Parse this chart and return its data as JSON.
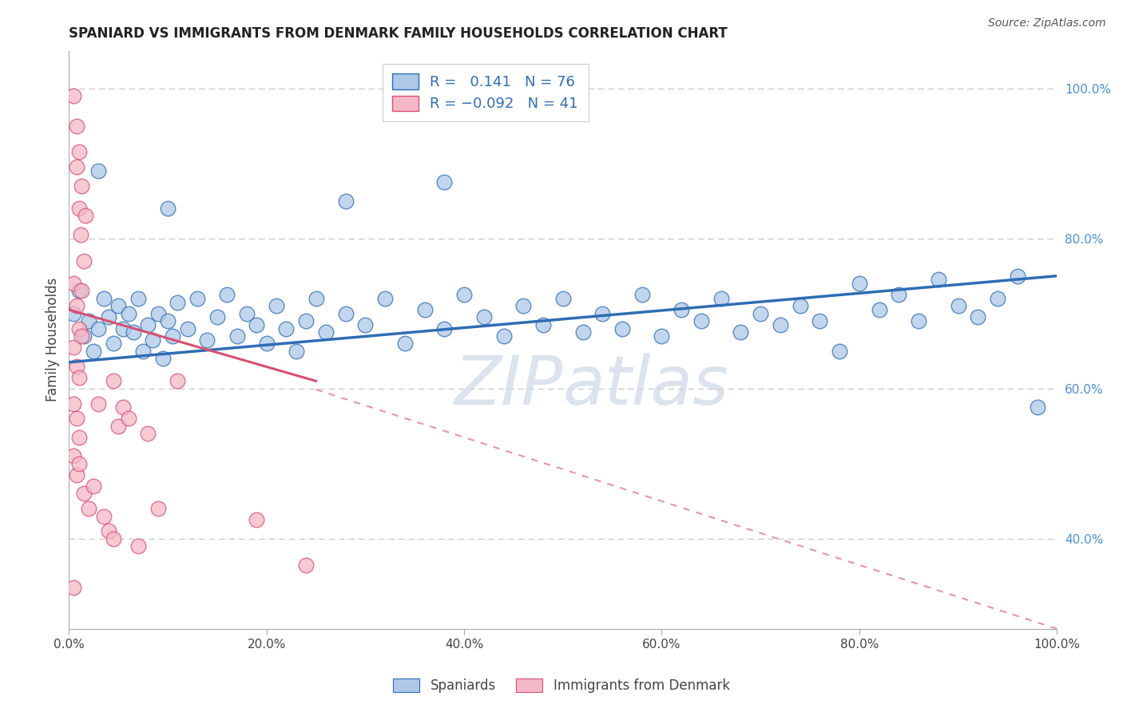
{
  "title": "SPANIARD VS IMMIGRANTS FROM DENMARK FAMILY HOUSEHOLDS CORRELATION CHART",
  "source": "Source: ZipAtlas.com",
  "ylabel": "Family Households",
  "r_blue": 0.141,
  "n_blue": 76,
  "r_pink": -0.092,
  "n_pink": 41,
  "blue_color": "#adc8e8",
  "pink_color": "#f5b8c8",
  "blue_line_color": "#2e6db4",
  "pink_line_color": "#d94f70",
  "dash_line_color": "#e0a0b0",
  "watermark_color": "#ccd8e8",
  "blue_dots": [
    [
      0.5,
      70.0
    ],
    [
      1.0,
      73.0
    ],
    [
      1.5,
      67.0
    ],
    [
      2.0,
      69.0
    ],
    [
      2.5,
      65.0
    ],
    [
      3.0,
      68.0
    ],
    [
      3.5,
      72.0
    ],
    [
      4.0,
      69.5
    ],
    [
      4.5,
      66.0
    ],
    [
      5.0,
      71.0
    ],
    [
      5.5,
      68.0
    ],
    [
      6.0,
      70.0
    ],
    [
      6.5,
      67.5
    ],
    [
      7.0,
      72.0
    ],
    [
      7.5,
      65.0
    ],
    [
      8.0,
      68.5
    ],
    [
      8.5,
      66.5
    ],
    [
      9.0,
      70.0
    ],
    [
      9.5,
      64.0
    ],
    [
      10.0,
      69.0
    ],
    [
      10.5,
      67.0
    ],
    [
      11.0,
      71.5
    ],
    [
      12.0,
      68.0
    ],
    [
      13.0,
      72.0
    ],
    [
      14.0,
      66.5
    ],
    [
      15.0,
      69.5
    ],
    [
      16.0,
      72.5
    ],
    [
      17.0,
      67.0
    ],
    [
      18.0,
      70.0
    ],
    [
      19.0,
      68.5
    ],
    [
      20.0,
      66.0
    ],
    [
      21.0,
      71.0
    ],
    [
      22.0,
      68.0
    ],
    [
      23.0,
      65.0
    ],
    [
      24.0,
      69.0
    ],
    [
      25.0,
      72.0
    ],
    [
      26.0,
      67.5
    ],
    [
      28.0,
      70.0
    ],
    [
      30.0,
      68.5
    ],
    [
      32.0,
      72.0
    ],
    [
      34.0,
      66.0
    ],
    [
      36.0,
      70.5
    ],
    [
      38.0,
      68.0
    ],
    [
      40.0,
      72.5
    ],
    [
      42.0,
      69.5
    ],
    [
      44.0,
      67.0
    ],
    [
      46.0,
      71.0
    ],
    [
      48.0,
      68.5
    ],
    [
      50.0,
      72.0
    ],
    [
      52.0,
      67.5
    ],
    [
      54.0,
      70.0
    ],
    [
      56.0,
      68.0
    ],
    [
      58.0,
      72.5
    ],
    [
      60.0,
      67.0
    ],
    [
      62.0,
      70.5
    ],
    [
      64.0,
      69.0
    ],
    [
      66.0,
      72.0
    ],
    [
      68.0,
      67.5
    ],
    [
      70.0,
      70.0
    ],
    [
      72.0,
      68.5
    ],
    [
      74.0,
      71.0
    ],
    [
      76.0,
      69.0
    ],
    [
      78.0,
      65.0
    ],
    [
      80.0,
      74.0
    ],
    [
      82.0,
      70.5
    ],
    [
      84.0,
      72.5
    ],
    [
      86.0,
      69.0
    ],
    [
      88.0,
      74.5
    ],
    [
      90.0,
      71.0
    ],
    [
      92.0,
      69.5
    ],
    [
      94.0,
      72.0
    ],
    [
      96.0,
      75.0
    ],
    [
      10.0,
      84.0
    ],
    [
      3.0,
      89.0
    ],
    [
      38.0,
      87.5
    ],
    [
      28.0,
      85.0
    ],
    [
      98.0,
      57.5
    ]
  ],
  "pink_dots": [
    [
      0.5,
      99.0
    ],
    [
      0.8,
      89.5
    ],
    [
      1.0,
      84.0
    ],
    [
      1.2,
      80.5
    ],
    [
      1.5,
      77.0
    ],
    [
      0.8,
      95.0
    ],
    [
      1.0,
      91.5
    ],
    [
      1.3,
      87.0
    ],
    [
      1.7,
      83.0
    ],
    [
      0.5,
      74.0
    ],
    [
      0.8,
      71.0
    ],
    [
      1.0,
      68.0
    ],
    [
      1.3,
      73.0
    ],
    [
      0.5,
      65.5
    ],
    [
      0.8,
      63.0
    ],
    [
      1.0,
      61.5
    ],
    [
      1.3,
      67.0
    ],
    [
      0.5,
      58.0
    ],
    [
      0.8,
      56.0
    ],
    [
      1.0,
      53.5
    ],
    [
      0.5,
      51.0
    ],
    [
      0.8,
      48.5
    ],
    [
      1.0,
      50.0
    ],
    [
      1.5,
      46.0
    ],
    [
      2.0,
      44.0
    ],
    [
      2.5,
      47.0
    ],
    [
      3.0,
      58.0
    ],
    [
      3.5,
      43.0
    ],
    [
      4.0,
      41.0
    ],
    [
      4.5,
      40.0
    ],
    [
      5.0,
      55.0
    ],
    [
      5.5,
      57.5
    ],
    [
      6.0,
      56.0
    ],
    [
      7.0,
      39.0
    ],
    [
      8.0,
      54.0
    ],
    [
      9.0,
      44.0
    ],
    [
      11.0,
      61.0
    ],
    [
      19.0,
      42.5
    ],
    [
      24.0,
      36.5
    ],
    [
      4.5,
      61.0
    ],
    [
      0.5,
      33.5
    ]
  ],
  "xlim": [
    0,
    100
  ],
  "ylim": [
    28,
    105
  ],
  "xticks": [
    0,
    20,
    40,
    60,
    80,
    100
  ],
  "xticklabels": [
    "0.0%",
    "20.0%",
    "40.0%",
    "60.0%",
    "80.0%",
    "100.0%"
  ],
  "yticks_right_vals": [
    40.0,
    60.0,
    80.0,
    100.0
  ],
  "yticks_right_labels": [
    "40.0%",
    "60.0%",
    "80.0%",
    "100.0%"
  ],
  "legend_r_blue": "R =   0.141   N = 76",
  "legend_r_pink": "R = −0.092   N = 41"
}
